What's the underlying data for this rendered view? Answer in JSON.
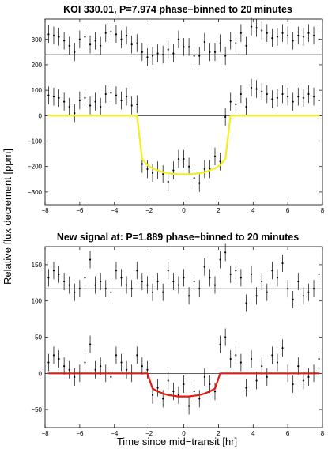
{
  "figure": {
    "ylabel": "Relative flux decrement [ppm]",
    "xlabel": "Time since mid−transit [hr]"
  },
  "chart_data": [
    {
      "type": "scatter",
      "title": "KOI 330.01, P=7.974 phase−binned to 20 minutes",
      "xlim": [
        -8,
        8
      ],
      "ylim": [
        -350,
        380
      ],
      "xticks": [
        -8,
        -6,
        -4,
        -2,
        0,
        2,
        4,
        6,
        8
      ],
      "yticks": [
        -300,
        -200,
        -100,
        0,
        100,
        200,
        300
      ],
      "grid": false,
      "offset": 240,
      "error_bar": 35,
      "model_color": "#f2ee1f",
      "x": [
        -7.8,
        -7.5,
        -7.2,
        -6.9,
        -6.6,
        -6.3,
        -6.0,
        -5.7,
        -5.4,
        -5.1,
        -4.8,
        -4.5,
        -4.2,
        -3.9,
        -3.6,
        -3.3,
        -3.0,
        -2.7,
        -2.4,
        -2.1,
        -1.8,
        -1.5,
        -1.2,
        -0.9,
        -0.6,
        -0.3,
        0.0,
        0.3,
        0.6,
        0.9,
        1.2,
        1.5,
        1.8,
        2.1,
        2.4,
        2.7,
        3.0,
        3.3,
        3.6,
        3.9,
        4.2,
        4.5,
        4.8,
        5.1,
        5.4,
        5.7,
        6.0,
        6.3,
        6.6,
        6.9,
        7.2,
        7.5,
        7.8
      ],
      "residuals": [
        80,
        75,
        70,
        55,
        35,
        10,
        60,
        70,
        40,
        55,
        35,
        85,
        90,
        80,
        60,
        75,
        40,
        45,
        10,
        -10,
        -5,
        5,
        0,
        20,
        5,
        60,
        30,
        30,
        -5,
        -5,
        50,
        10,
        10,
        45,
        -5,
        55,
        45,
        85,
        35,
        110,
        105,
        95,
        85,
        65,
        70,
        85,
        75,
        55,
        75,
        70,
        85,
        75,
        60
      ],
      "values": [
        80,
        75,
        70,
        55,
        35,
        10,
        60,
        70,
        40,
        55,
        35,
        85,
        90,
        80,
        60,
        75,
        40,
        45,
        -190,
        -210,
        -225,
        -215,
        -230,
        -260,
        -215,
        -170,
        -170,
        -200,
        -245,
        -265,
        -210,
        -210,
        -160,
        -180,
        -5,
        55,
        45,
        85,
        35,
        110,
        105,
        95,
        85,
        65,
        70,
        85,
        75,
        55,
        75,
        70,
        85,
        75,
        60
      ],
      "model": [
        0,
        0,
        0,
        0,
        0,
        0,
        0,
        0,
        0,
        0,
        0,
        0,
        0,
        0,
        0,
        0,
        0,
        0,
        -170,
        -194,
        -207,
        -215,
        -222,
        -226,
        -229,
        -230,
        -230,
        -230,
        -229,
        -226,
        -222,
        -215,
        -207,
        -194,
        -170,
        0,
        0,
        0,
        0,
        0,
        0,
        0,
        0,
        0,
        0,
        0,
        0,
        0,
        0,
        0,
        0,
        0,
        0
      ]
    },
    {
      "type": "scatter",
      "title": "New signal at: P=1.889 phase−binned to 20 minutes",
      "xlim": [
        -8,
        8
      ],
      "ylim": [
        -75,
        175
      ],
      "xticks": [
        -8,
        -6,
        -4,
        -2,
        0,
        2,
        4,
        6,
        8
      ],
      "yticks": [
        -50,
        0,
        50,
        100,
        150
      ],
      "grid": false,
      "offset": 117,
      "error_bar": 12,
      "model_color": "#e4190f",
      "x": [
        -7.8,
        -7.5,
        -7.2,
        -6.9,
        -6.6,
        -6.3,
        -6.0,
        -5.7,
        -5.4,
        -5.1,
        -4.8,
        -4.5,
        -4.2,
        -3.9,
        -3.6,
        -3.3,
        -3.0,
        -2.7,
        -2.4,
        -2.1,
        -1.8,
        -1.5,
        -1.2,
        -0.9,
        -0.6,
        -0.3,
        0.0,
        0.3,
        0.6,
        0.9,
        1.2,
        1.5,
        1.8,
        2.1,
        2.4,
        2.7,
        3.0,
        3.3,
        3.6,
        3.9,
        4.2,
        4.5,
        4.8,
        5.1,
        5.4,
        5.7,
        6.0,
        6.3,
        6.6,
        6.9,
        7.2,
        7.5,
        7.8
      ],
      "residuals": [
        15,
        25,
        20,
        10,
        5,
        -5,
        0,
        15,
        40,
        5,
        10,
        0,
        -5,
        25,
        15,
        5,
        0,
        25,
        10,
        5,
        -5,
        10,
        -5,
        25,
        10,
        5,
        15,
        -10,
        10,
        0,
        30,
        15,
        5,
        40,
        50,
        20,
        25,
        15,
        -20,
        20,
        -10,
        10,
        -5,
        25,
        15,
        35,
        0,
        -15,
        10,
        -10,
        -5,
        0,
        20
      ],
      "values": [
        15,
        25,
        20,
        10,
        5,
        -5,
        0,
        15,
        40,
        5,
        10,
        0,
        -5,
        25,
        15,
        5,
        0,
        25,
        10,
        5,
        -30,
        -20,
        -35,
        -10,
        -25,
        -30,
        -15,
        -45,
        -25,
        -35,
        -5,
        -15,
        -25,
        40,
        50,
        20,
        25,
        15,
        -20,
        20,
        -10,
        10,
        -5,
        25,
        15,
        35,
        0,
        -15,
        10,
        -10,
        -5,
        0,
        20
      ],
      "model": [
        0,
        0,
        0,
        0,
        0,
        0,
        0,
        0,
        0,
        0,
        0,
        0,
        0,
        0,
        0,
        0,
        0,
        0,
        0,
        0,
        -21,
        -25,
        -28,
        -30,
        -31,
        -32,
        -32,
        -32,
        -31,
        -30,
        -28,
        -25,
        -21,
        0,
        0,
        0,
        0,
        0,
        0,
        0,
        0,
        0,
        0,
        0,
        0,
        0,
        0,
        0,
        0,
        0,
        0,
        0,
        0
      ]
    }
  ]
}
